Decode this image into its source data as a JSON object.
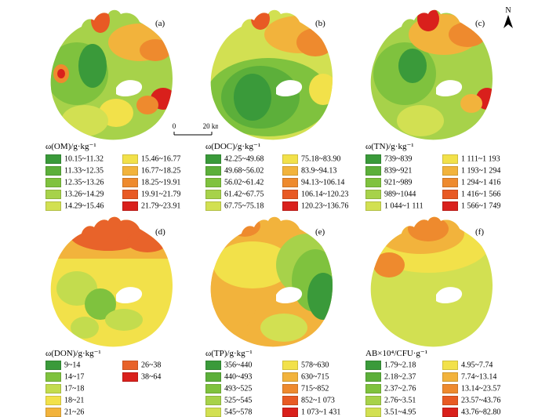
{
  "panels": [
    {
      "label": "(a)",
      "legend_title": "ω(OM)/g·kg⁻¹",
      "items": [
        {
          "text": "10.15~11.32",
          "color": "#3a9a3a"
        },
        {
          "text": "11.33~12.35",
          "color": "#5caf3a"
        },
        {
          "text": "12.35~13.26",
          "color": "#7fc23e"
        },
        {
          "text": "13.26~14.29",
          "color": "#a7d24a"
        },
        {
          "text": "14.29~15.46",
          "color": "#d2e052"
        },
        {
          "text": "15.46~16.77",
          "color": "#f2e14a"
        },
        {
          "text": "16.77~18.25",
          "color": "#f2b33c"
        },
        {
          "text": "18.25~19.91",
          "color": "#ee8a2e"
        },
        {
          "text": "19.91~21.79",
          "color": "#e85a24"
        },
        {
          "text": "21.79~23.91",
          "color": "#d9201c"
        }
      ]
    },
    {
      "label": "(b)",
      "legend_title": "ω(DOC)/g·kg⁻¹",
      "items": [
        {
          "text": "42.25~49.68",
          "color": "#3a9a3a"
        },
        {
          "text": "49.68~56.02",
          "color": "#5caf3a"
        },
        {
          "text": "56.02~61.42",
          "color": "#7fc23e"
        },
        {
          "text": "61.42~67.75",
          "color": "#a7d24a"
        },
        {
          "text": "67.75~75.18",
          "color": "#d2e052"
        },
        {
          "text": "75.18~83.90",
          "color": "#f2e14a"
        },
        {
          "text": "83.9~94.13",
          "color": "#f2b33c"
        },
        {
          "text": "94.13~106.14",
          "color": "#ee8a2e"
        },
        {
          "text": "106.14~120.23",
          "color": "#e85a24"
        },
        {
          "text": "120.23~136.76",
          "color": "#d9201c"
        }
      ]
    },
    {
      "label": "(c)",
      "legend_title": "ω(TN)/g·kg⁻¹",
      "items": [
        {
          "text": "739~839",
          "color": "#3a9a3a"
        },
        {
          "text": "839~921",
          "color": "#5caf3a"
        },
        {
          "text": "921~989",
          "color": "#7fc23e"
        },
        {
          "text": "989~1044",
          "color": "#a7d24a"
        },
        {
          "text": "1 044~1 111",
          "color": "#d2e052"
        },
        {
          "text": "1 111~1 193",
          "color": "#f2e14a"
        },
        {
          "text": "1 193~1 294",
          "color": "#f2b33c"
        },
        {
          "text": "1 294~1 416",
          "color": "#ee8a2e"
        },
        {
          "text": "1 416~1 566",
          "color": "#e85a24"
        },
        {
          "text": "1 566~1 749",
          "color": "#d9201c"
        }
      ]
    },
    {
      "label": "(d)",
      "legend_title": "ω(DON)/g·kg⁻¹",
      "items": [
        {
          "text": "9~14",
          "color": "#3a9a3a"
        },
        {
          "text": "14~17",
          "color": "#7fc23e"
        },
        {
          "text": "17~18",
          "color": "#c3dc4e"
        },
        {
          "text": "18~21",
          "color": "#f2e14a"
        },
        {
          "text": "21~26",
          "color": "#f2b33c"
        },
        {
          "text": "26~38",
          "color": "#e8632a"
        },
        {
          "text": "38~64",
          "color": "#d9201c"
        }
      ]
    },
    {
      "label": "(e)",
      "legend_title": "ω(TP)/g·kg⁻¹",
      "items": [
        {
          "text": "356~440",
          "color": "#3a9a3a"
        },
        {
          "text": "440~493",
          "color": "#5caf3a"
        },
        {
          "text": "493~525",
          "color": "#7fc23e"
        },
        {
          "text": "525~545",
          "color": "#a7d24a"
        },
        {
          "text": "545~578",
          "color": "#d2e052"
        },
        {
          "text": "578~630",
          "color": "#f2e14a"
        },
        {
          "text": "630~715",
          "color": "#f2b33c"
        },
        {
          "text": "715~852",
          "color": "#ee8a2e"
        },
        {
          "text": "852~1 073",
          "color": "#e85a24"
        },
        {
          "text": "1 073~1 431",
          "color": "#d9201c"
        }
      ]
    },
    {
      "label": "(f)",
      "legend_title": "AB×10⁴/CFU·g⁻¹",
      "items": [
        {
          "text": "1.79~2.18",
          "color": "#3a9a3a"
        },
        {
          "text": "2.18~2.37",
          "color": "#5caf3a"
        },
        {
          "text": "2.37~2.76",
          "color": "#7fc23e"
        },
        {
          "text": "2.76~3.51",
          "color": "#a7d24a"
        },
        {
          "text": "3.51~4.95",
          "color": "#d2e052"
        },
        {
          "text": "4.95~7.74",
          "color": "#f2e14a"
        },
        {
          "text": "7.74~13.14",
          "color": "#f2b33c"
        },
        {
          "text": "13.14~23.57",
          "color": "#ee8a2e"
        },
        {
          "text": "23.57~43.76",
          "color": "#e85a24"
        },
        {
          "text": "43.76~82.80",
          "color": "#d9201c"
        }
      ]
    }
  ],
  "scale": {
    "start": "0",
    "end": "20 km"
  },
  "north_label": "N"
}
